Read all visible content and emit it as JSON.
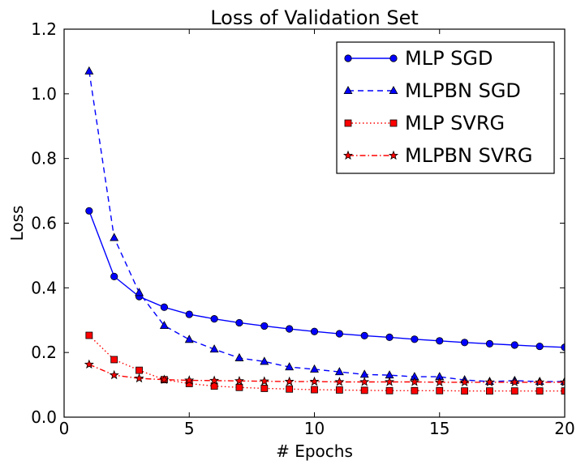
{
  "chart_data": {
    "type": "line",
    "title": "Loss of Validation Set",
    "xlabel": "# Epochs",
    "ylabel": "Loss",
    "xlim": [
      0,
      20
    ],
    "ylim": [
      0.0,
      1.2
    ],
    "x_ticks": [
      0,
      5,
      10,
      15,
      20
    ],
    "y_ticks": [
      0.0,
      0.2,
      0.4,
      0.6,
      0.8,
      1.0,
      1.2
    ],
    "x_tick_labels": [
      "0",
      "5",
      "10",
      "15",
      "20"
    ],
    "y_tick_labels": [
      "0.0",
      "0.2",
      "0.4",
      "0.6",
      "0.8",
      "1.0",
      "1.2"
    ],
    "grid": false,
    "legend_position": "top-right",
    "x": [
      1,
      2,
      3,
      4,
      5,
      6,
      7,
      8,
      9,
      10,
      11,
      12,
      13,
      14,
      15,
      16,
      17,
      18,
      19,
      20
    ],
    "series": [
      {
        "name": "MLP SGD",
        "color": "#0000ff",
        "line_style": "solid",
        "marker": "circle",
        "values": [
          0.638,
          0.435,
          0.373,
          0.34,
          0.318,
          0.304,
          0.292,
          0.282,
          0.273,
          0.265,
          0.258,
          0.252,
          0.247,
          0.241,
          0.236,
          0.231,
          0.227,
          0.223,
          0.219,
          0.216
        ]
      },
      {
        "name": "MLPBN SGD",
        "color": "#0000ff",
        "line_style": "dashed",
        "marker": "triangle",
        "values": [
          1.07,
          0.555,
          0.385,
          0.283,
          0.24,
          0.21,
          0.183,
          0.172,
          0.155,
          0.148,
          0.14,
          0.132,
          0.13,
          0.125,
          0.125,
          0.115,
          0.11,
          0.113,
          0.11,
          0.11
        ]
      },
      {
        "name": "MLP SVRG",
        "color": "#ff0000",
        "line_style": "dotted",
        "marker": "square",
        "values": [
          0.253,
          0.178,
          0.145,
          0.116,
          0.104,
          0.096,
          0.092,
          0.089,
          0.087,
          0.085,
          0.084,
          0.083,
          0.082,
          0.082,
          0.082,
          0.081,
          0.081,
          0.081,
          0.081,
          0.081
        ]
      },
      {
        "name": "MLPBN SVRG",
        "color": "#ff0000",
        "line_style": "dashdot",
        "marker": "star",
        "values": [
          0.163,
          0.13,
          0.12,
          0.116,
          0.114,
          0.113,
          0.112,
          0.111,
          0.11,
          0.11,
          0.109,
          0.109,
          0.109,
          0.109,
          0.108,
          0.108,
          0.108,
          0.108,
          0.108,
          0.108
        ]
      }
    ]
  }
}
